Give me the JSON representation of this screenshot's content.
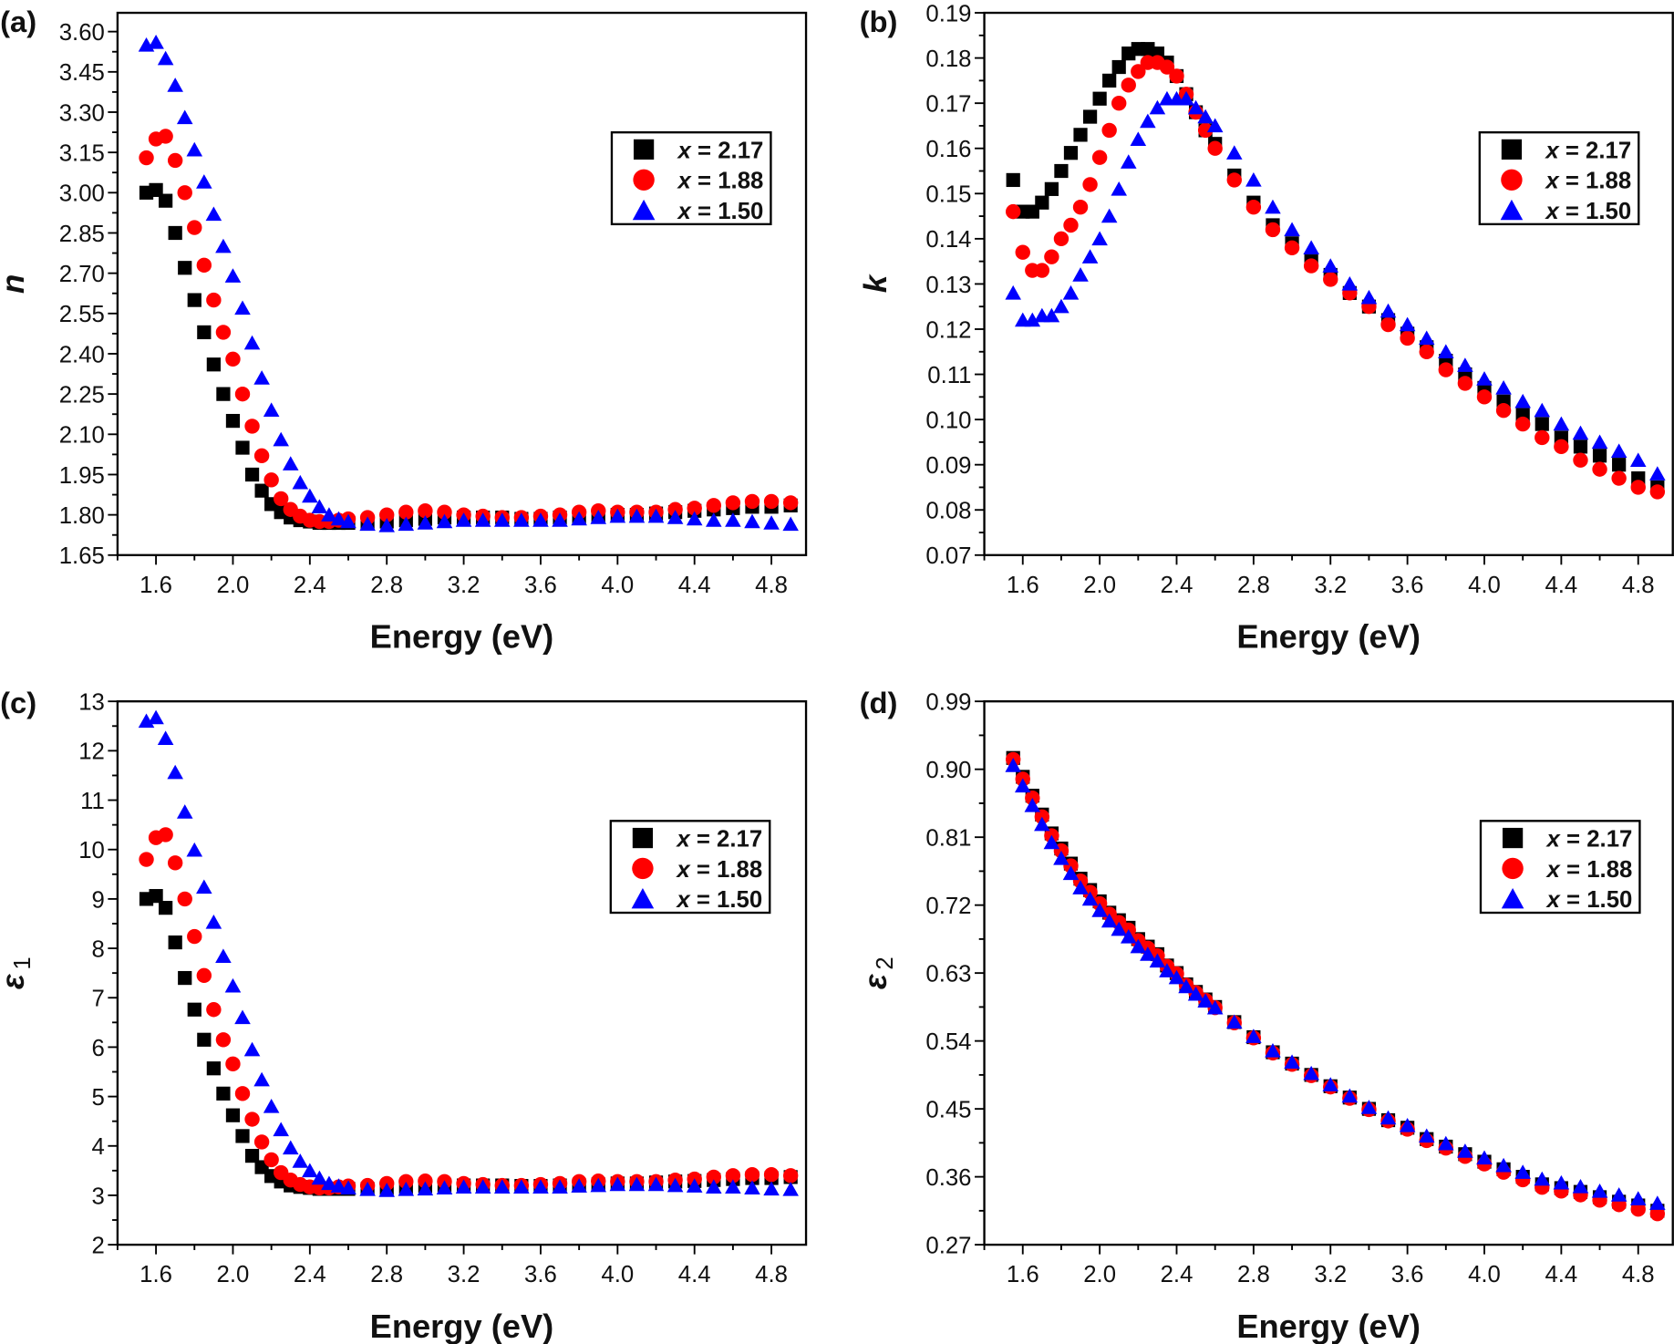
{
  "chart_data": [
    {
      "panel": "(a)",
      "type": "scatter",
      "xlabel": "Energy (eV)",
      "ylabel": "n",
      "xlim": [
        1.4,
        4.98
      ],
      "ylim": [
        1.65,
        3.67
      ],
      "xticks": [
        "1.6",
        "2.0",
        "2.4",
        "2.8",
        "3.2",
        "3.6",
        "4.0",
        "4.4",
        "4.8"
      ],
      "yticks": [
        "1.65",
        "1.80",
        "1.95",
        "2.10",
        "2.25",
        "2.40",
        "2.55",
        "2.70",
        "2.85",
        "3.00",
        "3.15",
        "3.30",
        "3.45",
        "3.60"
      ],
      "legend": "right",
      "series": [
        {
          "name": "x = 2.17",
          "color": "#000000",
          "marker": "square",
          "values": [
            3.0,
            3.01,
            2.97,
            2.85,
            2.72,
            2.6,
            2.48,
            2.36,
            2.25,
            2.15,
            2.05,
            1.95,
            1.89,
            1.84,
            1.81,
            1.79,
            1.78,
            1.775,
            1.77,
            1.77,
            1.77,
            1.77,
            1.77,
            1.775,
            1.78,
            1.785,
            1.79,
            1.79,
            1.79,
            1.79,
            1.785,
            1.785,
            1.79,
            1.79,
            1.795,
            1.8,
            1.8,
            1.805,
            1.81,
            1.815,
            1.82,
            1.825,
            1.83,
            1.83,
            1.835
          ]
        },
        {
          "name": "x = 1.88",
          "color": "#ff0000",
          "marker": "circle",
          "values": [
            3.13,
            3.2,
            3.21,
            3.12,
            3.0,
            2.87,
            2.73,
            2.6,
            2.48,
            2.38,
            2.25,
            2.13,
            2.02,
            1.93,
            1.86,
            1.82,
            1.795,
            1.78,
            1.775,
            1.775,
            1.78,
            1.785,
            1.79,
            1.8,
            1.81,
            1.815,
            1.81,
            1.8,
            1.795,
            1.79,
            1.79,
            1.795,
            1.8,
            1.81,
            1.815,
            1.81,
            1.81,
            1.81,
            1.82,
            1.825,
            1.835,
            1.845,
            1.85,
            1.85,
            1.845
          ]
        },
        {
          "name": "x = 1.50",
          "color": "#0000ff",
          "marker": "triangle",
          "values": [
            3.55,
            3.56,
            3.5,
            3.4,
            3.28,
            3.16,
            3.04,
            2.92,
            2.8,
            2.69,
            2.57,
            2.44,
            2.31,
            2.19,
            2.08,
            1.99,
            1.92,
            1.87,
            1.83,
            1.8,
            1.785,
            1.775,
            1.765,
            1.76,
            1.765,
            1.77,
            1.775,
            1.78,
            1.78,
            1.78,
            1.78,
            1.78,
            1.78,
            1.785,
            1.79,
            1.795,
            1.795,
            1.795,
            1.79,
            1.785,
            1.78,
            1.78,
            1.775,
            1.77,
            1.765
          ]
        }
      ]
    },
    {
      "panel": "(b)",
      "type": "scatter",
      "xlabel": "Energy (eV)",
      "ylabel": "k",
      "xlim": [
        1.4,
        4.98
      ],
      "ylim": [
        0.07,
        0.19
      ],
      "xticks": [
        "1.6",
        "2.0",
        "2.4",
        "2.8",
        "3.2",
        "3.6",
        "4.0",
        "4.4",
        "4.8"
      ],
      "yticks": [
        "0.07",
        "0.08",
        "0.09",
        "0.10",
        "0.11",
        "0.12",
        "0.13",
        "0.14",
        "0.15",
        "0.16",
        "0.17",
        "0.18",
        "0.19"
      ],
      "legend": "right",
      "series": [
        {
          "name": "x = 2.17",
          "color": "#000000",
          "marker": "square",
          "values": [
            0.153,
            0.146,
            0.146,
            0.148,
            0.151,
            0.155,
            0.159,
            0.163,
            0.167,
            0.171,
            0.175,
            0.178,
            0.181,
            0.182,
            0.182,
            0.181,
            0.179,
            0.176,
            0.172,
            0.168,
            0.164,
            0.161,
            0.154,
            0.148,
            0.143,
            0.139,
            0.135,
            0.132,
            0.128,
            0.125,
            0.122,
            0.119,
            0.116,
            0.113,
            0.11,
            0.107,
            0.104,
            0.101,
            0.099,
            0.096,
            0.094,
            0.092,
            0.09,
            0.087,
            0.085
          ]
        },
        {
          "name": "x = 1.88",
          "color": "#ff0000",
          "marker": "circle",
          "values": [
            0.146,
            0.137,
            0.133,
            0.133,
            0.136,
            0.14,
            0.143,
            0.147,
            0.152,
            0.158,
            0.164,
            0.17,
            0.174,
            0.177,
            0.179,
            0.179,
            0.178,
            0.176,
            0.172,
            0.168,
            0.164,
            0.16,
            0.153,
            0.147,
            0.142,
            0.138,
            0.134,
            0.131,
            0.128,
            0.125,
            0.121,
            0.118,
            0.115,
            0.111,
            0.108,
            0.105,
            0.102,
            0.099,
            0.096,
            0.094,
            0.091,
            0.089,
            0.087,
            0.085,
            0.084
          ]
        },
        {
          "name": "x = 1.50",
          "color": "#0000ff",
          "marker": "triangle",
          "values": [
            0.128,
            0.122,
            0.122,
            0.123,
            0.123,
            0.125,
            0.128,
            0.132,
            0.136,
            0.14,
            0.145,
            0.151,
            0.157,
            0.162,
            0.166,
            0.169,
            0.171,
            0.171,
            0.171,
            0.169,
            0.167,
            0.165,
            0.159,
            0.153,
            0.147,
            0.142,
            0.138,
            0.134,
            0.13,
            0.127,
            0.124,
            0.121,
            0.118,
            0.115,
            0.112,
            0.109,
            0.107,
            0.104,
            0.102,
            0.099,
            0.097,
            0.095,
            0.093,
            0.091,
            0.088
          ]
        }
      ]
    },
    {
      "panel": "(c)",
      "type": "scatter",
      "xlabel": "Energy (eV)",
      "ylabel": "ε",
      "ylabel_sub": "1",
      "xlim": [
        1.4,
        4.98
      ],
      "ylim": [
        2,
        13
      ],
      "xticks": [
        "1.6",
        "2.0",
        "2.4",
        "2.8",
        "3.2",
        "3.6",
        "4.0",
        "4.4",
        "4.8"
      ],
      "yticks": [
        "2",
        "3",
        "4",
        "5",
        "6",
        "7",
        "8",
        "9",
        "10",
        "11",
        "12",
        "13"
      ],
      "legend": "right",
      "series": [
        {
          "name": "x = 2.17",
          "color": "#000000",
          "marker": "square",
          "values": [
            9.0,
            9.06,
            8.82,
            8.12,
            7.4,
            6.76,
            6.15,
            5.57,
            5.06,
            4.62,
            4.2,
            3.8,
            3.57,
            3.39,
            3.28,
            3.2,
            3.17,
            3.15,
            3.13,
            3.13,
            3.13,
            3.13,
            3.13,
            3.15,
            3.17,
            3.19,
            3.2,
            3.2,
            3.2,
            3.2,
            3.19,
            3.19,
            3.2,
            3.2,
            3.22,
            3.24,
            3.24,
            3.26,
            3.28,
            3.29,
            3.31,
            3.33,
            3.35,
            3.35,
            3.37
          ]
        },
        {
          "name": "x = 1.88",
          "color": "#ff0000",
          "marker": "circle",
          "values": [
            9.8,
            10.24,
            10.3,
            9.73,
            9.0,
            8.24,
            7.45,
            6.76,
            6.15,
            5.66,
            5.06,
            4.54,
            4.08,
            3.72,
            3.46,
            3.31,
            3.22,
            3.17,
            3.15,
            3.15,
            3.17,
            3.19,
            3.2,
            3.24,
            3.28,
            3.29,
            3.28,
            3.24,
            3.22,
            3.2,
            3.2,
            3.22,
            3.24,
            3.28,
            3.29,
            3.28,
            3.28,
            3.28,
            3.31,
            3.33,
            3.37,
            3.4,
            3.42,
            3.42,
            3.4
          ]
        },
        {
          "name": "x = 1.50",
          "color": "#0000ff",
          "marker": "triangle",
          "values": [
            12.6,
            12.67,
            12.25,
            11.56,
            10.76,
            9.99,
            9.24,
            8.53,
            7.84,
            7.24,
            6.6,
            5.95,
            5.34,
            4.8,
            4.33,
            3.96,
            3.69,
            3.5,
            3.35,
            3.24,
            3.19,
            3.15,
            3.12,
            3.1,
            3.12,
            3.13,
            3.15,
            3.17,
            3.17,
            3.17,
            3.17,
            3.17,
            3.17,
            3.19,
            3.2,
            3.22,
            3.22,
            3.22,
            3.2,
            3.19,
            3.17,
            3.17,
            3.15,
            3.13,
            3.12
          ]
        }
      ]
    },
    {
      "panel": "(d)",
      "type": "scatter",
      "xlabel": "Energy (eV)",
      "ylabel": "ε",
      "ylabel_sub": "2",
      "xlim": [
        1.4,
        4.98
      ],
      "ylim": [
        0.27,
        0.99
      ],
      "xticks": [
        "1.6",
        "2.0",
        "2.4",
        "2.8",
        "3.2",
        "3.6",
        "4.0",
        "4.4",
        "4.8"
      ],
      "yticks": [
        "0.27",
        "0.36",
        "0.45",
        "0.54",
        "0.63",
        "0.72",
        "0.81",
        "0.90",
        "0.99"
      ],
      "legend": "right",
      "series": [
        {
          "name": "x = 2.17",
          "color": "#000000",
          "marker": "square",
          "values": [
            0.915,
            0.89,
            0.865,
            0.84,
            0.815,
            0.795,
            0.775,
            0.755,
            0.74,
            0.725,
            0.71,
            0.7,
            0.69,
            0.675,
            0.665,
            0.655,
            0.64,
            0.63,
            0.615,
            0.605,
            0.595,
            0.585,
            0.565,
            0.545,
            0.525,
            0.51,
            0.495,
            0.48,
            0.465,
            0.45,
            0.435,
            0.425,
            0.41,
            0.4,
            0.39,
            0.38,
            0.37,
            0.36,
            0.35,
            0.345,
            0.34,
            0.333,
            0.327,
            0.322,
            0.315
          ]
        },
        {
          "name": "x = 1.88",
          "color": "#ff0000",
          "marker": "circle",
          "values": [
            0.913,
            0.887,
            0.862,
            0.837,
            0.812,
            0.792,
            0.772,
            0.752,
            0.737,
            0.722,
            0.708,
            0.697,
            0.687,
            0.673,
            0.663,
            0.653,
            0.639,
            0.629,
            0.614,
            0.604,
            0.594,
            0.584,
            0.564,
            0.544,
            0.524,
            0.509,
            0.494,
            0.479,
            0.464,
            0.449,
            0.434,
            0.423,
            0.408,
            0.398,
            0.387,
            0.377,
            0.366,
            0.356,
            0.346,
            0.341,
            0.336,
            0.329,
            0.323,
            0.317,
            0.311
          ]
        },
        {
          "name": "x = 1.50",
          "color": "#0000ff",
          "marker": "triangle",
          "values": [
            0.905,
            0.878,
            0.852,
            0.827,
            0.803,
            0.782,
            0.762,
            0.743,
            0.728,
            0.713,
            0.699,
            0.688,
            0.678,
            0.665,
            0.655,
            0.646,
            0.633,
            0.624,
            0.612,
            0.602,
            0.593,
            0.584,
            0.565,
            0.546,
            0.527,
            0.512,
            0.497,
            0.482,
            0.467,
            0.452,
            0.438,
            0.428,
            0.414,
            0.404,
            0.394,
            0.385,
            0.375,
            0.366,
            0.357,
            0.352,
            0.347,
            0.341,
            0.336,
            0.331,
            0.325
          ]
        }
      ]
    }
  ],
  "x": [
    1.55,
    1.6,
    1.65,
    1.7,
    1.75,
    1.8,
    1.85,
    1.9,
    1.95,
    2.0,
    2.05,
    2.1,
    2.15,
    2.2,
    2.25,
    2.3,
    2.35,
    2.4,
    2.45,
    2.5,
    2.55,
    2.6,
    2.7,
    2.8,
    2.9,
    3.0,
    3.1,
    3.2,
    3.3,
    3.4,
    3.5,
    3.6,
    3.7,
    3.8,
    3.9,
    4.0,
    4.1,
    4.2,
    4.3,
    4.4,
    4.5,
    4.6,
    4.7,
    4.8,
    4.9
  ]
}
